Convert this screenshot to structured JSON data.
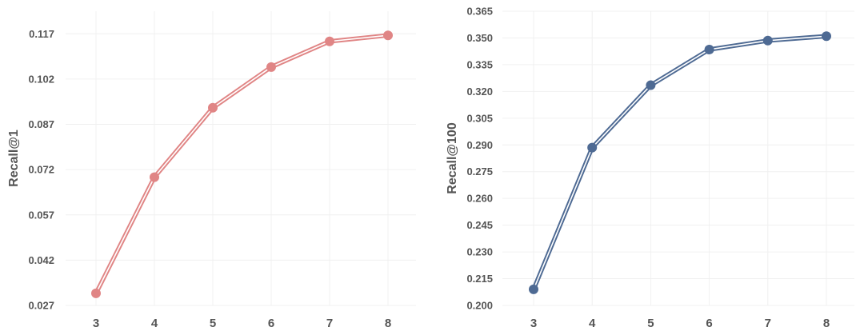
{
  "chart_data": [
    {
      "type": "line",
      "ylabel": "Recall@1",
      "x": [
        3,
        4,
        5,
        6,
        7,
        8
      ],
      "x_ticks": [
        "3",
        "4",
        "5",
        "6",
        "7",
        "8"
      ],
      "y_ticks": [
        "0.027",
        "0.042",
        "0.057",
        "0.072",
        "0.087",
        "0.102",
        "0.117"
      ],
      "ylim": [
        0.027,
        0.1245
      ],
      "grid": true,
      "series": [
        {
          "values": [
            0.031,
            0.0695,
            0.0925,
            0.106,
            0.1145,
            0.1165
          ],
          "color": "#e08585"
        }
      ]
    },
    {
      "type": "line",
      "ylabel": "Recall@100",
      "x": [
        3,
        4,
        5,
        6,
        7,
        8
      ],
      "x_ticks": [
        "3",
        "4",
        "5",
        "6",
        "7",
        "8"
      ],
      "y_ticks": [
        "0.200",
        "0.215",
        "0.230",
        "0.245",
        "0.260",
        "0.275",
        "0.290",
        "0.305",
        "0.320",
        "0.335",
        "0.350",
        "0.365"
      ],
      "ylim": [
        0.2,
        0.365
      ],
      "grid": true,
      "series": [
        {
          "values": [
            0.209,
            0.2885,
            0.3235,
            0.3435,
            0.3485,
            0.351
          ],
          "color": "#4e6a93"
        }
      ]
    }
  ]
}
